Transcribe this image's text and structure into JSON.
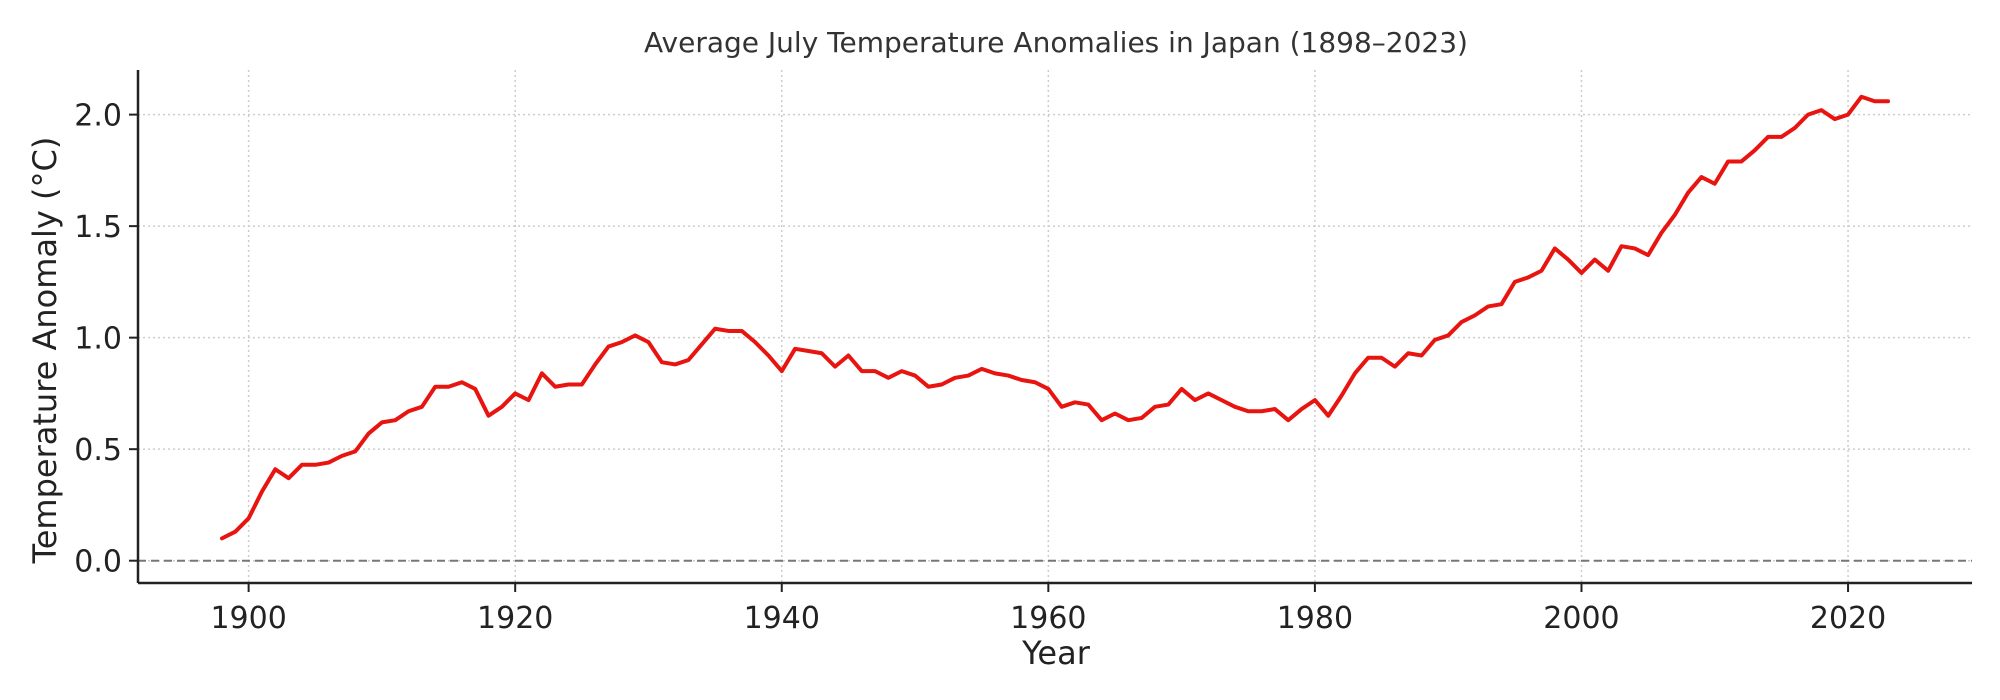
{
  "chart_data": {
    "type": "line",
    "title": "Average July Temperature Anomalies in Japan (1898–2023)",
    "xlabel": "Year",
    "ylabel": "Temperature Anomaly (°C)",
    "xlim": [
      1891.7,
      2029.3
    ],
    "ylim": [
      -0.1,
      2.2
    ],
    "xticks": [
      1900,
      1920,
      1940,
      1960,
      1980,
      2000,
      2020
    ],
    "xtick_labels": [
      "1900",
      "1920",
      "1940",
      "1960",
      "1980",
      "2000",
      "2020"
    ],
    "yticks": [
      0.0,
      0.5,
      1.0,
      1.5,
      2.0
    ],
    "ytick_labels": [
      "0.0",
      "0.5",
      "1.0",
      "1.5",
      "2.0"
    ],
    "grid": true,
    "reference_line": {
      "y": 0.0,
      "style": "dashed",
      "color": "#777777"
    },
    "series": [
      {
        "color": "#e8140f",
        "x": [
          1898,
          1899,
          1900,
          1901,
          1902,
          1903,
          1904,
          1905,
          1906,
          1907,
          1908,
          1909,
          1910,
          1911,
          1912,
          1913,
          1914,
          1915,
          1916,
          1917,
          1918,
          1919,
          1920,
          1921,
          1922,
          1923,
          1924,
          1925,
          1926,
          1927,
          1928,
          1929,
          1930,
          1931,
          1932,
          1933,
          1934,
          1935,
          1936,
          1937,
          1938,
          1939,
          1940,
          1941,
          1942,
          1943,
          1944,
          1945,
          1946,
          1947,
          1948,
          1949,
          1950,
          1951,
          1952,
          1953,
          1954,
          1955,
          1956,
          1957,
          1958,
          1959,
          1960,
          1961,
          1962,
          1963,
          1964,
          1965,
          1966,
          1967,
          1968,
          1969,
          1970,
          1971,
          1972,
          1973,
          1974,
          1975,
          1976,
          1977,
          1978,
          1979,
          1980,
          1981,
          1982,
          1983,
          1984,
          1985,
          1986,
          1987,
          1988,
          1989,
          1990,
          1991,
          1992,
          1993,
          1994,
          1995,
          1996,
          1997,
          1998,
          1999,
          2000,
          2001,
          2002,
          2003,
          2004,
          2005,
          2006,
          2007,
          2008,
          2009,
          2010,
          2011,
          2012,
          2013,
          2014,
          2015,
          2016,
          2017,
          2018,
          2019,
          2020,
          2021,
          2022,
          2023
        ],
        "y": [
          0.1,
          0.13,
          0.19,
          0.31,
          0.41,
          0.37,
          0.43,
          0.43,
          0.44,
          0.47,
          0.49,
          0.57,
          0.62,
          0.63,
          0.67,
          0.69,
          0.78,
          0.78,
          0.8,
          0.77,
          0.65,
          0.69,
          0.75,
          0.72,
          0.84,
          0.78,
          0.79,
          0.79,
          0.88,
          0.96,
          0.98,
          1.01,
          0.98,
          0.89,
          0.88,
          0.9,
          0.97,
          1.04,
          1.03,
          1.03,
          0.98,
          0.92,
          0.85,
          0.95,
          0.94,
          0.93,
          0.87,
          0.92,
          0.85,
          0.85,
          0.82,
          0.85,
          0.83,
          0.78,
          0.79,
          0.82,
          0.83,
          0.86,
          0.84,
          0.83,
          0.81,
          0.8,
          0.77,
          0.69,
          0.71,
          0.7,
          0.63,
          0.66,
          0.63,
          0.64,
          0.69,
          0.7,
          0.77,
          0.72,
          0.75,
          0.72,
          0.69,
          0.67,
          0.67,
          0.68,
          0.63,
          0.68,
          0.72,
          0.65,
          0.74,
          0.84,
          0.91,
          0.91,
          0.87,
          0.93,
          0.92,
          0.99,
          1.01,
          1.07,
          1.1,
          1.14,
          1.15,
          1.25,
          1.27,
          1.3,
          1.4,
          1.35,
          1.29,
          1.35,
          1.3,
          1.41,
          1.4,
          1.37,
          1.47,
          1.55,
          1.65,
          1.72,
          1.69,
          1.79,
          1.79,
          1.84,
          1.9,
          1.9,
          1.94,
          2.0,
          2.02,
          1.98,
          2.0,
          2.08,
          2.06,
          2.06
        ]
      }
    ]
  }
}
